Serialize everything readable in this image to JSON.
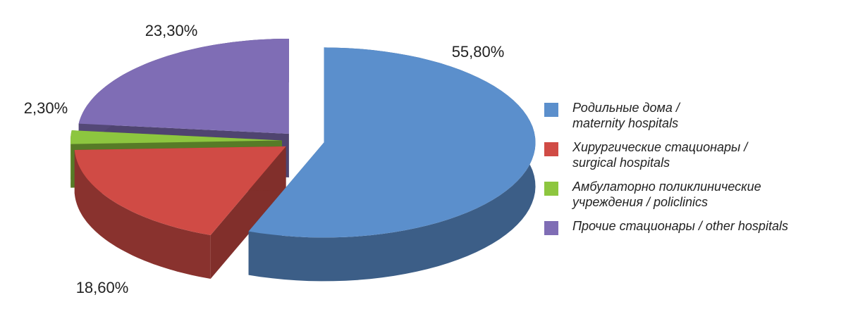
{
  "chart_data": {
    "type": "pie",
    "categories": [
      "Родильные дома /\nmaternity hospitals",
      "Хирургические стационары /\nsurgical hospitals",
      "Амбулаторно поликлинические\nучреждения / policlinics",
      "Прочие стационары / other hospitals"
    ],
    "values": [
      55.8,
      18.6,
      2.3,
      23.3
    ],
    "value_labels": [
      "55,80%",
      "18,60%",
      "2,30%",
      "23,30%"
    ],
    "colors": [
      "#5b8fcc",
      "#d04b45",
      "#8dc63f",
      "#7f6db5"
    ],
    "legend": "right"
  }
}
